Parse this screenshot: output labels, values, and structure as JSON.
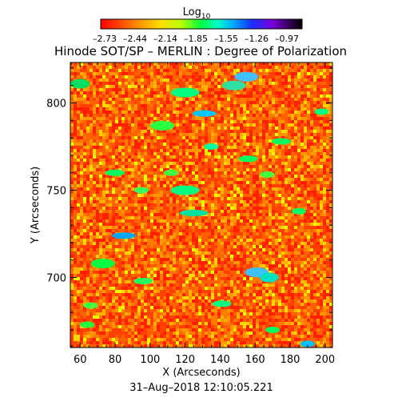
{
  "chart_data": {
    "type": "heatmap",
    "title": "Hinode SOT/SP – MERLIN : Degree of Polarization",
    "xlabel": "X (Arcseconds)",
    "ylabel": "Y (Arcseconds)",
    "timestamp": "31–Aug–2018 12:10:05.221",
    "colorbar": {
      "label": "Log",
      "label_subscript": "10",
      "ticks": [
        "–2.73",
        "–2.44",
        "–2.14",
        "–1.85",
        "–1.55",
        "–1.26",
        "–0.97"
      ],
      "range": [
        -2.73,
        -0.97
      ],
      "colormap": "rainbow: red – orange – yellow – green – cyan – blue – violet – black"
    },
    "x_ticks": [
      60,
      80,
      100,
      120,
      140,
      160,
      180,
      200
    ],
    "y_ticks": [
      700,
      750,
      800
    ],
    "xlim": [
      54.4,
      204.2
    ],
    "ylim": [
      659.9,
      823.2
    ],
    "field_description": "predominantly red/orange with scattered yellow and small green-cyan patches"
  }
}
